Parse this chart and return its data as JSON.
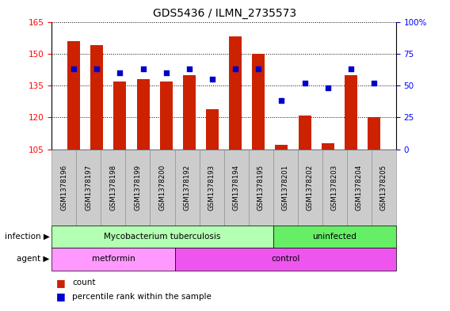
{
  "title": "GDS5436 / ILMN_2735573",
  "samples": [
    "GSM1378196",
    "GSM1378197",
    "GSM1378198",
    "GSM1378199",
    "GSM1378200",
    "GSM1378192",
    "GSM1378193",
    "GSM1378194",
    "GSM1378195",
    "GSM1378201",
    "GSM1378202",
    "GSM1378203",
    "GSM1378204",
    "GSM1378205"
  ],
  "bar_values": [
    156,
    154,
    137,
    138,
    137,
    140,
    124,
    158,
    150,
    107,
    121,
    108,
    140,
    120
  ],
  "bar_base": 105,
  "blue_dots_pct": [
    63,
    63,
    60,
    63,
    60,
    63,
    55,
    63,
    63,
    38,
    52,
    48,
    63,
    52
  ],
  "bar_color": "#cc2200",
  "dot_color": "#0000cc",
  "ylim_left": [
    105,
    165
  ],
  "ylim_right": [
    0,
    100
  ],
  "yticks_left": [
    105,
    120,
    135,
    150,
    165
  ],
  "yticks_right": [
    0,
    25,
    50,
    75,
    100
  ],
  "yticklabels_right": [
    "0",
    "25",
    "50",
    "75",
    "100%"
  ],
  "infection_groups": [
    {
      "label": "Mycobacterium tuberculosis",
      "start": 0,
      "end": 9,
      "color": "#b3ffb3"
    },
    {
      "label": "uninfected",
      "start": 9,
      "end": 14,
      "color": "#66ee66"
    }
  ],
  "agent_groups": [
    {
      "label": "metformin",
      "start": 0,
      "end": 5,
      "color": "#ff99ff"
    },
    {
      "label": "control",
      "start": 5,
      "end": 14,
      "color": "#ee55ee"
    }
  ],
  "infection_label": "infection",
  "agent_label": "agent",
  "legend_count": "count",
  "legend_percentile": "percentile rank within the sample",
  "bar_width": 0.55
}
